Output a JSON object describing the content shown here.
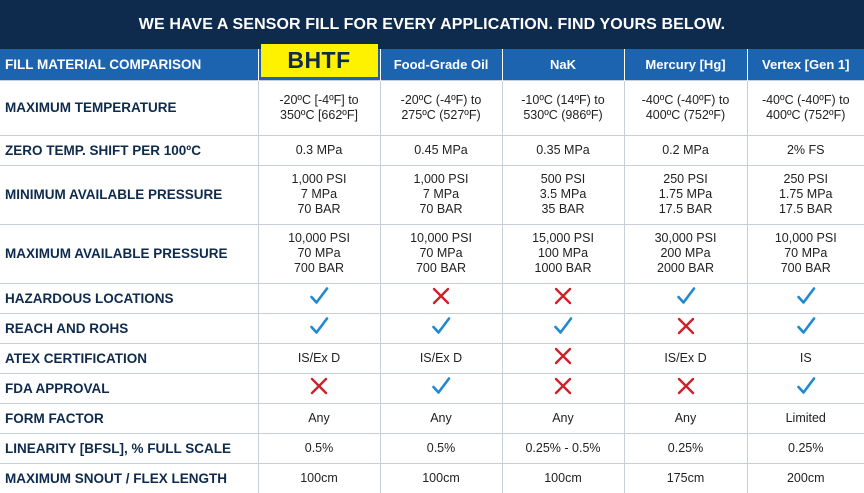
{
  "banner": "WE HAVE A SENSOR FILL FOR EVERY APPLICATION. FIND YOURS BELOW.",
  "header": {
    "label": "FILL MATERIAL COMPARISON",
    "columns": [
      "BHTF",
      "Food-Grade Oil",
      "NaK",
      "Mercury [Hg]",
      "Vertex [Gen 1]"
    ]
  },
  "rows": {
    "max_temp": {
      "label": "MAXIMUM TEMPERATURE",
      "cells": [
        [
          "-20ºC [-4ºF] to",
          "350ºC [662ºF]"
        ],
        [
          "-20ºC (-4ºF) to",
          "275ºC (527ºF)"
        ],
        [
          "-10ºC (14ºF) to",
          "530ºC (986ºF)"
        ],
        [
          "-40ºC (-40ºF) to",
          "400ºC (752ºF)"
        ],
        [
          "-40ºC (-40ºF) to",
          "400ºC (752ºF)"
        ]
      ]
    },
    "zero_shift": {
      "label": "ZERO TEMP. SHIFT PER 100ºC",
      "cells": [
        "0.3 MPa",
        "0.45 MPa",
        "0.35 MPa",
        "0.2 MPa",
        "2% FS"
      ]
    },
    "min_pressure": {
      "label": "MINIMUM AVAILABLE PRESSURE",
      "cells": [
        [
          "1,000 PSI",
          "7 MPa",
          "70 BAR"
        ],
        [
          "1,000 PSI",
          "7 MPa",
          "70 BAR"
        ],
        [
          "500 PSI",
          "3.5 MPa",
          "35 BAR"
        ],
        [
          "250 PSI",
          "1.75 MPa",
          "17.5 BAR"
        ],
        [
          "250 PSI",
          "1.75 MPa",
          "17.5 BAR"
        ]
      ]
    },
    "max_pressure": {
      "label": "MAXIMUM AVAILABLE PRESSURE",
      "cells": [
        [
          "10,000 PSI",
          "70 MPa",
          "700 BAR"
        ],
        [
          "10,000 PSI",
          "70 MPa",
          "700 BAR"
        ],
        [
          "15,000 PSI",
          "100 MPa",
          "1000 BAR"
        ],
        [
          "30,000 PSI",
          "200 MPa",
          "2000 BAR"
        ],
        [
          "10,000 PSI",
          "70 MPa",
          "700 BAR"
        ]
      ]
    },
    "hazardous": {
      "label": "HAZARDOUS LOCATIONS",
      "marks": [
        "check",
        "cross",
        "cross",
        "check",
        "check"
      ]
    },
    "reach": {
      "label": "REACH AND ROHS",
      "marks": [
        "check",
        "check",
        "check",
        "cross",
        "check"
      ]
    },
    "atex": {
      "label": "ATEX CERTIFICATION",
      "cells": [
        "IS/Ex D",
        "IS/Ex D",
        "",
        "IS/Ex D",
        "IS"
      ],
      "marks": [
        "",
        "",
        "cross",
        "",
        ""
      ]
    },
    "fda": {
      "label": "FDA APPROVAL",
      "marks": [
        "cross",
        "check",
        "cross",
        "cross",
        "check"
      ]
    },
    "form": {
      "label": "FORM FACTOR",
      "cells": [
        "Any",
        "Any",
        "Any",
        "Any",
        "Limited"
      ]
    },
    "linearity": {
      "label": "LINEARITY [BFSL], % FULL SCALE",
      "cells": [
        "0.5%",
        "0.5%",
        "0.25% - 0.5%",
        "0.25%",
        "0.25%"
      ]
    },
    "snout": {
      "label": "MAXIMUM SNOUT / FLEX LENGTH",
      "cells": [
        "100cm",
        "100cm",
        "100cm",
        "175cm",
        "200cm"
      ]
    }
  },
  "colors": {
    "banner_bg": "#0e2a4d",
    "header_bg": "#1c63b0",
    "highlight": "#fff200",
    "check": "#1f8ad1",
    "cross": "#cc2229"
  }
}
